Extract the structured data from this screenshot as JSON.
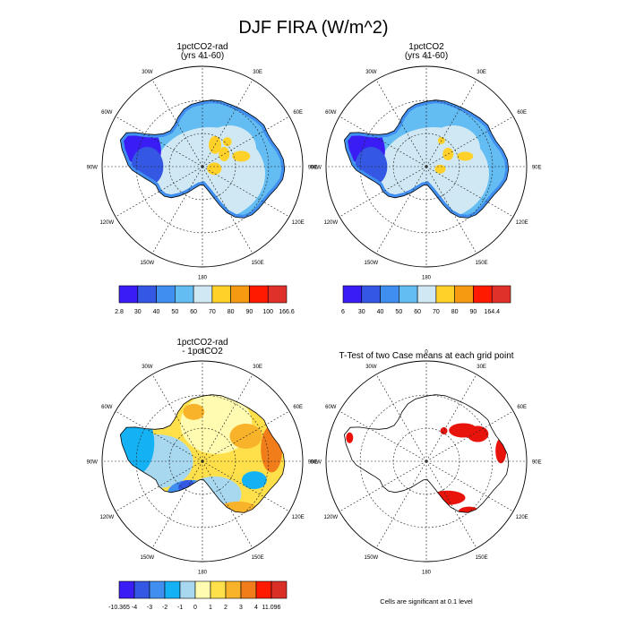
{
  "title": "DJF FIRA (W/m^2)",
  "lon_labels": [
    "0",
    "30E",
    "60E",
    "90E",
    "120E",
    "150E",
    "180",
    "150W",
    "120W",
    "90W",
    "60W",
    "30W"
  ],
  "panels": [
    {
      "title_line1": "1pctCO2-rad",
      "title_line2": "(yrs 41-60)",
      "kind": "field"
    },
    {
      "title_line1": "1pctCO2",
      "title_line2": "(yrs 41-60)",
      "kind": "field"
    },
    {
      "title_line1": "1pctCO2-rad",
      "title_line2": "- 1pctCO2",
      "kind": "diff"
    },
    {
      "title_line1": "T-Test of two Case means at each grid point",
      "title_line2": "",
      "kind": "ttest"
    }
  ],
  "footnote": "Cells are significant at 0.1 level",
  "colorbars": [
    {
      "labels": [
        "2.8",
        "30",
        "40",
        "50",
        "60",
        "70",
        "80",
        "90",
        "100",
        "166.6"
      ],
      "colors": [
        "#3a1cf4",
        "#3457e4",
        "#3f8ef0",
        "#63bdf2",
        "#cfe8f4",
        "#ffd129",
        "#f59a11",
        "#ff1a00",
        "#e0302a"
      ]
    },
    {
      "labels": [
        "6",
        "30",
        "40",
        "50",
        "60",
        "70",
        "80",
        "90",
        "164.4"
      ],
      "colors": [
        "#3a1cf4",
        "#3457e4",
        "#3f8ef0",
        "#63bdf2",
        "#cfe8f4",
        "#ffd129",
        "#f59a11",
        "#ff1a00",
        "#e0302a"
      ]
    },
    {
      "labels": [
        "-10.365",
        "-4",
        "-3",
        "-2",
        "-1",
        "0",
        "1",
        "2",
        "3",
        "4",
        "11.096"
      ],
      "colors": [
        "#3a1cf4",
        "#3457e4",
        "#3f8ef0",
        "#14b2f4",
        "#a7d8f0",
        "#fffbb0",
        "#ffe04a",
        "#f8b32a",
        "#f07c1a",
        "#ff1a00",
        "#d92f24"
      ]
    }
  ],
  "chart_data": {
    "type": "heatmap",
    "projection": "south polar stereographic",
    "variable": "DJF FIRA",
    "units": "W/m^2",
    "panels": [
      {
        "name": "1pctCO2-rad (yrs 41-60)",
        "min": 2.8,
        "max": 166.6,
        "contour_levels": [
          30,
          40,
          50,
          60,
          70,
          80,
          90,
          100
        ]
      },
      {
        "name": "1pctCO2 (yrs 41-60)",
        "min": 6,
        "max": 164.4,
        "contour_levels": [
          30,
          40,
          50,
          60,
          70,
          80,
          90
        ]
      },
      {
        "name": "1pctCO2-rad - 1pctCO2",
        "min": -10.365,
        "max": 11.096,
        "contour_levels": [
          -4,
          -3,
          -2,
          -1,
          0,
          1,
          2,
          3,
          4
        ]
      },
      {
        "name": "T-Test of two Case means at each grid point",
        "significance_level": 0.1
      }
    ]
  }
}
